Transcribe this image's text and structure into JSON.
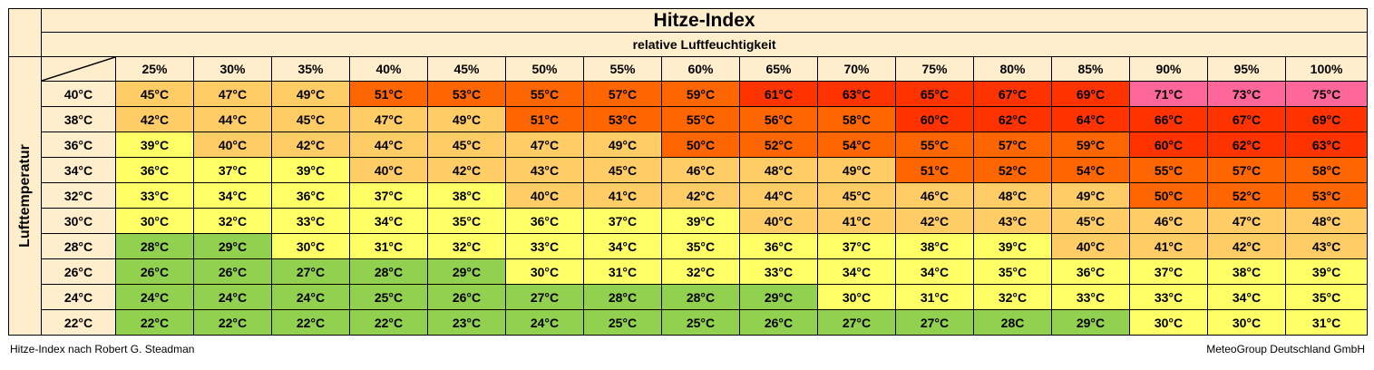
{
  "chart_data": {
    "type": "table",
    "title": "Hitze-Index",
    "subtitle": "relative Luftfeuchtigkeit",
    "row_axis_label": "Lufttemperatur",
    "columns": [
      "25%",
      "30%",
      "35%",
      "40%",
      "45%",
      "50%",
      "55%",
      "60%",
      "65%",
      "70%",
      "75%",
      "80%",
      "85%",
      "90%",
      "95%",
      "100%"
    ],
    "rows": [
      {
        "label": "40°C",
        "values": [
          "45°C",
          "47°C",
          "49°C",
          "51°C",
          "53°C",
          "55°C",
          "57°C",
          "59°C",
          "61°C",
          "63°C",
          "65°C",
          "67°C",
          "69°C",
          "71°C",
          "73°C",
          "75°C"
        ],
        "colors": [
          "tan",
          "tan",
          "tan",
          "orange",
          "orange",
          "orange",
          "orange",
          "orange",
          "red",
          "red",
          "red",
          "red",
          "red",
          "pink",
          "pink",
          "pink"
        ]
      },
      {
        "label": "38°C",
        "values": [
          "42°C",
          "44°C",
          "45°C",
          "47°C",
          "49°C",
          "51°C",
          "53°C",
          "55°C",
          "56°C",
          "58°C",
          "60°C",
          "62°C",
          "64°C",
          "66°C",
          "67°C",
          "69°C"
        ],
        "colors": [
          "tan",
          "tan",
          "tan",
          "tan",
          "tan",
          "orange",
          "orange",
          "orange",
          "orange",
          "orange",
          "red",
          "red",
          "red",
          "red",
          "red",
          "red"
        ]
      },
      {
        "label": "36°C",
        "values": [
          "39°C",
          "40°C",
          "42°C",
          "44°C",
          "45°C",
          "47°C",
          "49°C",
          "50°C",
          "52°C",
          "54°C",
          "55°C",
          "57°C",
          "59°C",
          "60°C",
          "62°C",
          "63°C"
        ],
        "colors": [
          "yellow",
          "tan",
          "tan",
          "tan",
          "tan",
          "tan",
          "tan",
          "orange",
          "orange",
          "orange",
          "orange",
          "orange",
          "orange",
          "red",
          "red",
          "red"
        ]
      },
      {
        "label": "34°C",
        "values": [
          "36°C",
          "37°C",
          "39°C",
          "40°C",
          "42°C",
          "43°C",
          "45°C",
          "46°C",
          "48°C",
          "49°C",
          "51°C",
          "52°C",
          "54°C",
          "55°C",
          "57°C",
          "58°C"
        ],
        "colors": [
          "yellow",
          "yellow",
          "yellow",
          "tan",
          "tan",
          "tan",
          "tan",
          "tan",
          "tan",
          "tan",
          "orange",
          "orange",
          "orange",
          "orange",
          "orange",
          "orange"
        ]
      },
      {
        "label": "32°C",
        "values": [
          "33°C",
          "34°C",
          "36°C",
          "37°C",
          "38°C",
          "40°C",
          "41°C",
          "42°C",
          "44°C",
          "45°C",
          "46°C",
          "48°C",
          "49°C",
          "50°C",
          "52°C",
          "53°C"
        ],
        "colors": [
          "yellow",
          "yellow",
          "yellow",
          "yellow",
          "yellow",
          "tan",
          "tan",
          "tan",
          "tan",
          "tan",
          "tan",
          "tan",
          "tan",
          "orange",
          "orange",
          "orange"
        ]
      },
      {
        "label": "30°C",
        "values": [
          "30°C",
          "32°C",
          "33°C",
          "34°C",
          "35°C",
          "36°C",
          "37°C",
          "39°C",
          "40°C",
          "41°C",
          "42°C",
          "43°C",
          "45°C",
          "46°C",
          "47°C",
          "48°C"
        ],
        "colors": [
          "yellow",
          "yellow",
          "yellow",
          "yellow",
          "yellow",
          "yellow",
          "yellow",
          "yellow",
          "tan",
          "tan",
          "tan",
          "tan",
          "tan",
          "tan",
          "tan",
          "tan"
        ]
      },
      {
        "label": "28°C",
        "values": [
          "28°C",
          "29°C",
          "30°C",
          "31°C",
          "32°C",
          "33°C",
          "34°C",
          "35°C",
          "36°C",
          "37°C",
          "38°C",
          "39°C",
          "40°C",
          "41°C",
          "42°C",
          "43°C"
        ],
        "colors": [
          "green",
          "green",
          "yellow",
          "yellow",
          "yellow",
          "yellow",
          "yellow",
          "yellow",
          "yellow",
          "yellow",
          "yellow",
          "yellow",
          "tan",
          "tan",
          "tan",
          "tan"
        ]
      },
      {
        "label": "26°C",
        "values": [
          "26°C",
          "26°C",
          "27°C",
          "28°C",
          "29°C",
          "30°C",
          "31°C",
          "32°C",
          "33°C",
          "34°C",
          "34°C",
          "35°C",
          "36°C",
          "37°C",
          "38°C",
          "39°C"
        ],
        "colors": [
          "green",
          "green",
          "green",
          "green",
          "green",
          "yellow",
          "yellow",
          "yellow",
          "yellow",
          "yellow",
          "yellow",
          "yellow",
          "yellow",
          "yellow",
          "yellow",
          "yellow"
        ]
      },
      {
        "label": "24°C",
        "values": [
          "24°C",
          "24°C",
          "24°C",
          "25°C",
          "26°C",
          "27°C",
          "28°C",
          "28°C",
          "29°C",
          "30°C",
          "31°C",
          "32°C",
          "33°C",
          "33°C",
          "34°C",
          "35°C"
        ],
        "colors": [
          "green",
          "green",
          "green",
          "green",
          "green",
          "green",
          "green",
          "green",
          "green",
          "yellow",
          "yellow",
          "yellow",
          "yellow",
          "yellow",
          "yellow",
          "yellow"
        ]
      },
      {
        "label": "22°C",
        "values": [
          "22°C",
          "22°C",
          "22°C",
          "22°C",
          "23°C",
          "24°C",
          "25°C",
          "25°C",
          "26°C",
          "27°C",
          "27°C",
          "28C",
          "29°C",
          "30°C",
          "30°C",
          "31°C"
        ],
        "colors": [
          "green",
          "green",
          "green",
          "green",
          "green",
          "green",
          "green",
          "green",
          "green",
          "green",
          "green",
          "green",
          "green",
          "yellow",
          "yellow",
          "yellow"
        ]
      }
    ],
    "palette": {
      "header": "#ffeecc",
      "green": "#92d050",
      "yellow": "#ffff66",
      "tan": "#ffcc66",
      "orange": "#ff6600",
      "red": "#ff3300",
      "pink": "#ff6699"
    }
  },
  "footer": {
    "left": "Hitze-Index nach Robert G. Steadman",
    "right": "MeteoGroup Deutschland GmbH"
  }
}
